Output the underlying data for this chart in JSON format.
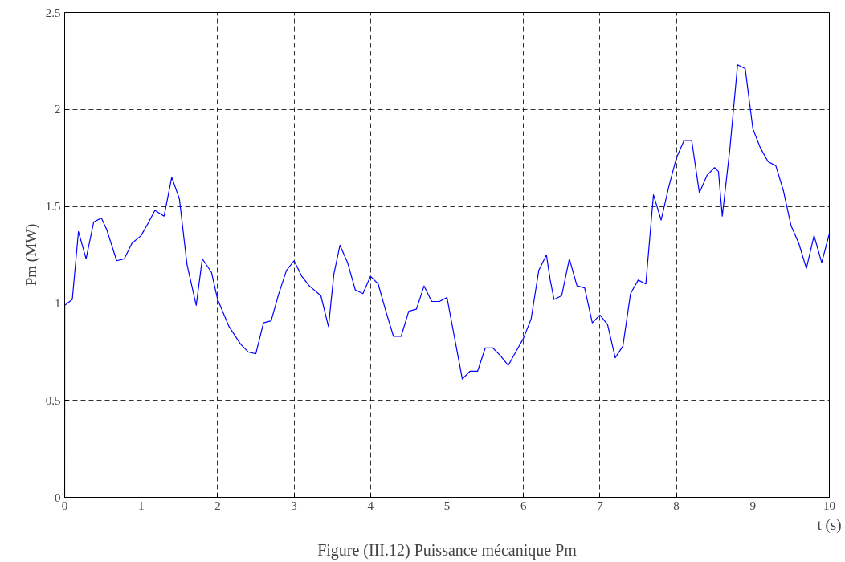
{
  "chart_data": {
    "type": "line",
    "xlabel": "t (s)",
    "ylabel": "Pm (MW)",
    "annotations": [
      "Figure (III.12) Puissance mécanique Pm"
    ],
    "x": [
      0,
      0.001,
      0.1,
      0.18,
      0.28,
      0.38,
      0.48,
      0.55,
      0.68,
      0.78,
      0.88,
      1.0,
      1.1,
      1.18,
      1.3,
      1.4,
      1.5,
      1.6,
      1.72,
      1.8,
      1.92,
      2.0,
      2.15,
      2.3,
      2.4,
      2.5,
      2.6,
      2.7,
      2.8,
      2.9,
      3.0,
      3.1,
      3.2,
      3.35,
      3.45,
      3.52,
      3.6,
      3.7,
      3.8,
      3.9,
      4.0,
      4.1,
      4.2,
      4.3,
      4.4,
      4.5,
      4.6,
      4.7,
      4.8,
      4.9,
      5.0,
      5.1,
      5.2,
      5.3,
      5.4,
      5.5,
      5.6,
      5.7,
      5.8,
      5.9,
      6.0,
      6.1,
      6.2,
      6.3,
      6.35,
      6.4,
      6.5,
      6.6,
      6.7,
      6.8,
      6.9,
      7.0,
      7.1,
      7.2,
      7.3,
      7.4,
      7.5,
      7.6,
      7.7,
      7.8,
      7.9,
      8.0,
      8.1,
      8.2,
      8.3,
      8.4,
      8.5,
      8.55,
      8.6,
      8.7,
      8.8,
      8.9,
      9.0,
      9.1,
      9.2,
      9.3,
      9.4,
      9.5,
      9.6,
      9.7,
      9.8,
      9.9,
      10.0
    ],
    "series": [
      {
        "color": "#0000ff",
        "values": [
          0,
          0.99,
          1.02,
          1.37,
          1.23,
          1.42,
          1.44,
          1.38,
          1.22,
          1.23,
          1.31,
          1.35,
          1.42,
          1.48,
          1.45,
          1.65,
          1.54,
          1.2,
          0.99,
          1.23,
          1.16,
          1.02,
          0.88,
          0.79,
          0.75,
          0.74,
          0.9,
          0.91,
          1.05,
          1.17,
          1.22,
          1.14,
          1.09,
          1.04,
          0.88,
          1.15,
          1.3,
          1.21,
          1.07,
          1.05,
          1.14,
          1.1,
          0.96,
          0.83,
          0.83,
          0.96,
          0.97,
          1.09,
          1.01,
          1.01,
          1.03,
          0.82,
          0.61,
          0.65,
          0.65,
          0.77,
          0.77,
          0.73,
          0.68,
          0.75,
          0.82,
          0.92,
          1.17,
          1.25,
          1.12,
          1.02,
          1.04,
          1.23,
          1.09,
          1.08,
          0.9,
          0.94,
          0.89,
          0.72,
          0.78,
          1.05,
          1.12,
          1.1,
          1.56,
          1.43,
          1.6,
          1.75,
          1.84,
          1.84,
          1.57,
          1.66,
          1.7,
          1.68,
          1.45,
          1.8,
          2.23,
          2.21,
          1.9,
          1.8,
          1.73,
          1.71,
          1.58,
          1.4,
          1.31,
          1.18,
          1.35,
          1.21,
          1.36
        ]
      }
    ],
    "xlim": [
      0,
      10
    ],
    "ylim": [
      0,
      2.5
    ],
    "xticks": [
      0,
      1,
      2,
      3,
      4,
      5,
      6,
      7,
      8,
      9,
      10
    ],
    "yticks": [
      0,
      0.5,
      1,
      1.5,
      2,
      2.5
    ],
    "grid": true,
    "line_style": "solid",
    "marker": "none"
  }
}
